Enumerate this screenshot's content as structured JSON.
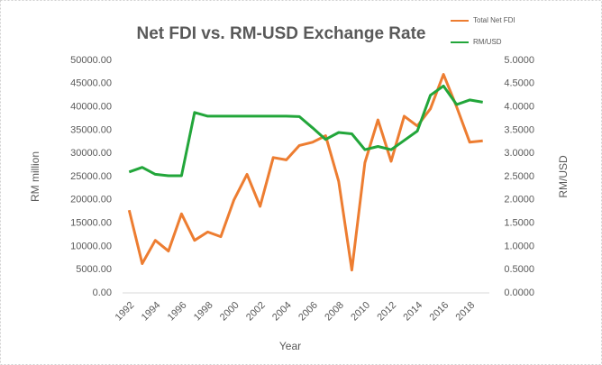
{
  "chart_data": {
    "type": "line",
    "title": "Net FDI vs. RM-USD Exchange Rate",
    "x_label": "Year",
    "y_label": "RM million",
    "y2_label": "RM/USD",
    "categories": [
      "1992",
      null,
      "1994",
      null,
      "1996",
      null,
      "1998",
      null,
      "2000",
      null,
      "2002",
      null,
      "2004",
      null,
      "2006",
      null,
      "2008",
      null,
      "2010",
      null,
      "2012",
      null,
      "2014",
      null,
      "2016",
      null,
      "2018",
      null
    ],
    "series": [
      {
        "name": "Total Net FDI",
        "color": "#ed7d31",
        "axis": "y",
        "values": [
          17800,
          6300,
          11300,
          9000,
          17000,
          11300,
          13100,
          12100,
          20000,
          25500,
          18600,
          29100,
          28600,
          31700,
          32400,
          33800,
          24000,
          4900,
          28000,
          37200,
          28300,
          38000,
          35900,
          39600,
          47000,
          40000,
          32400,
          32700
        ]
      },
      {
        "name": "RM/USD",
        "color": "#22a63a",
        "axis": "y2",
        "values": [
          2.6,
          2.7,
          2.55,
          2.52,
          2.52,
          3.88,
          3.8,
          3.8,
          3.8,
          3.8,
          3.8,
          3.8,
          3.8,
          3.79,
          3.55,
          3.3,
          3.45,
          3.42,
          3.08,
          3.15,
          3.08,
          3.28,
          3.48,
          4.25,
          4.45,
          4.05,
          4.15,
          4.1
        ]
      }
    ],
    "ylim": [
      0,
      50000
    ],
    "yticks": [
      {
        "value": 0,
        "label": "0.00"
      },
      {
        "value": 5000,
        "label": "5000.00"
      },
      {
        "value": 10000,
        "label": "10000.00"
      },
      {
        "value": 15000,
        "label": "15000.00"
      },
      {
        "value": 20000,
        "label": "20000.00"
      },
      {
        "value": 25000,
        "label": "25000.00"
      },
      {
        "value": 30000,
        "label": "30000.00"
      },
      {
        "value": 35000,
        "label": "35000.00"
      },
      {
        "value": 40000,
        "label": "40000.00"
      },
      {
        "value": 45000,
        "label": "45000.00"
      },
      {
        "value": 50000,
        "label": "50000.00"
      }
    ],
    "y2lim": [
      0,
      5
    ],
    "y2ticks": [
      {
        "value": 0,
        "label": "0.0000"
      },
      {
        "value": 0.5,
        "label": "0.5000"
      },
      {
        "value": 1,
        "label": "1.0000"
      },
      {
        "value": 1.5,
        "label": "1.5000"
      },
      {
        "value": 2,
        "label": "2.0000"
      },
      {
        "value": 2.5,
        "label": "2.5000"
      },
      {
        "value": 3,
        "label": "3.0000"
      },
      {
        "value": 3.5,
        "label": "3.5000"
      },
      {
        "value": 4,
        "label": "4.0000"
      },
      {
        "value": 4.5,
        "label": "4.5000"
      },
      {
        "value": 5,
        "label": "5.0000"
      }
    ],
    "grid": false
  }
}
